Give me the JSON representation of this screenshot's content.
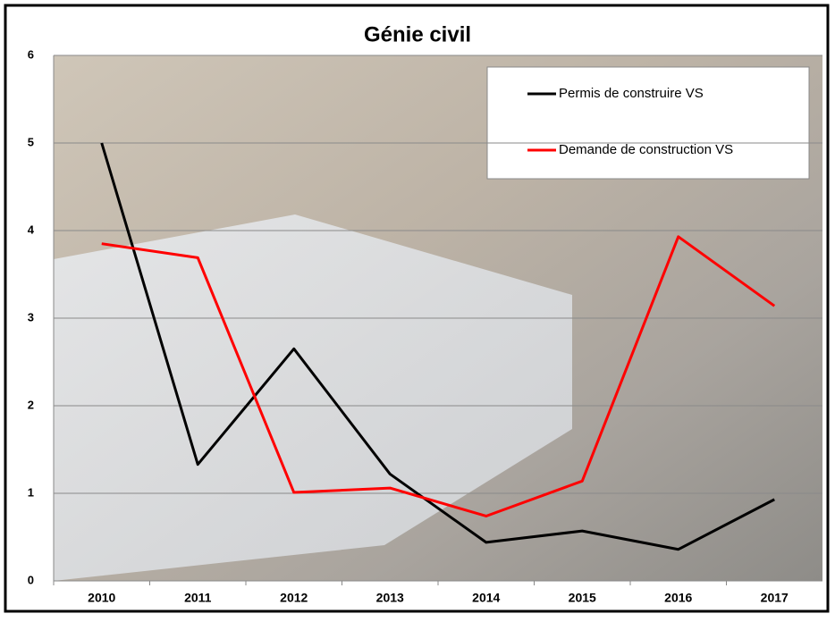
{
  "chart_data": {
    "type": "line",
    "title": "Génie civil",
    "categories": [
      "2010",
      "2011",
      "2012",
      "2013",
      "2014",
      "2015",
      "2016",
      "2017"
    ],
    "series": [
      {
        "name": "Permis de construire VS",
        "color": "#000000",
        "values": [
          5.0,
          1.33,
          2.65,
          1.22,
          0.44,
          0.57,
          0.36,
          0.93
        ]
      },
      {
        "name": "Demande de construction VS",
        "color": "#ff0000",
        "values": [
          3.85,
          3.69,
          1.01,
          1.06,
          0.74,
          1.14,
          3.93,
          3.14
        ]
      }
    ],
    "ylim": [
      0,
      6
    ],
    "yticks": [
      0,
      1,
      2,
      3,
      4,
      5,
      6
    ],
    "grid": true,
    "legend": "top-right"
  }
}
